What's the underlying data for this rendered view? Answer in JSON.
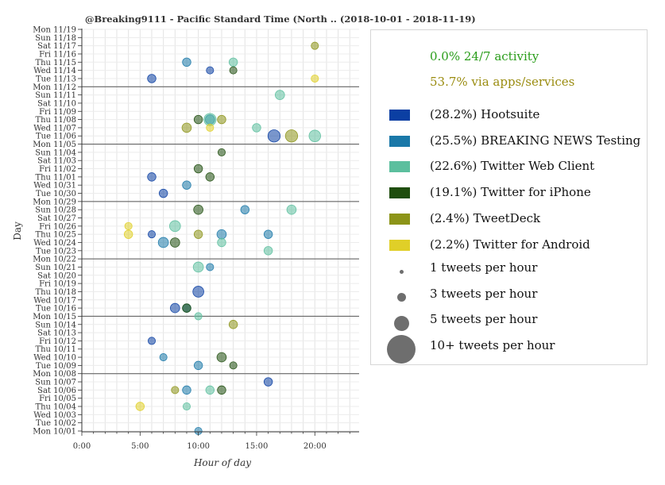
{
  "chart_data": {
    "type": "scatter",
    "title": "@Breaking9111 - Pacific Standard Time (North .. (2018-10-01 - 2018-11-19)",
    "xlabel": "Hour of day",
    "ylabel": "Day",
    "xlim": [
      0,
      23.8
    ],
    "xticks": [
      "0:00",
      "5:00",
      "10:00",
      "15:00",
      "20:00"
    ],
    "xtick_values": [
      0,
      5,
      10,
      15,
      20
    ],
    "days": [
      "Mon 11/19",
      "Sun 11/18",
      "Sat 11/17",
      "Fri 11/16",
      "Thu 11/15",
      "Wed 11/14",
      "Tue 11/13",
      "Mon 11/12",
      "Sun 11/11",
      "Sat 11/10",
      "Fri 11/09",
      "Thu 11/08",
      "Wed 11/07",
      "Tue 11/06",
      "Mon 11/05",
      "Sun 11/04",
      "Sat 11/03",
      "Fri 11/02",
      "Thu 11/01",
      "Wed 10/31",
      "Tue 10/30",
      "Mon 10/29",
      "Sun 10/28",
      "Sat 10/27",
      "Fri 10/26",
      "Thu 10/25",
      "Wed 10/24",
      "Tue 10/23",
      "Mon 10/22",
      "Sun 10/21",
      "Sat 10/20",
      "Fri 10/19",
      "Thu 10/18",
      "Wed 10/17",
      "Tue 10/16",
      "Mon 10/15",
      "Sun 10/14",
      "Sat 10/13",
      "Fri 10/12",
      "Thu 10/11",
      "Wed 10/10",
      "Tue 10/09",
      "Mon 10/08",
      "Sun 10/07",
      "Sat 10/06",
      "Fri 10/05",
      "Thu 10/04",
      "Wed 10/03",
      "Tue 10/02",
      "Mon 10/01"
    ],
    "week_separators": [
      "Mon 11/12",
      "Mon 11/05",
      "Mon 10/29",
      "Mon 10/22",
      "Mon 10/15",
      "Mon 10/08"
    ],
    "grid": true,
    "legend_position": "right",
    "series": [
      {
        "name": "Hootsuite",
        "share": "28.2%",
        "color": "#0b3fa3",
        "points": [
          [
            "Tue 11/06",
            16.5,
            8
          ],
          [
            "Tue 11/13",
            6,
            3
          ],
          [
            "Thu 10/18",
            10,
            6
          ],
          [
            "Tue 10/16",
            8,
            4
          ],
          [
            "Thu 11/01",
            6,
            3
          ],
          [
            "Tue 10/30",
            7,
            3
          ],
          [
            "Fri 10/12",
            6,
            2
          ],
          [
            "Wed 11/14",
            11,
            2
          ],
          [
            "Sun 10/07",
            16,
            3
          ],
          [
            "Thu 10/25",
            6,
            2
          ]
        ]
      },
      {
        "name": "BREAKING NEWS Testing",
        "share": "25.5%",
        "color": "#1a78a8",
        "points": [
          [
            "Wed 10/24",
            7,
            5
          ],
          [
            "Thu 10/25",
            12,
            4
          ],
          [
            "Thu 11/15",
            9,
            3
          ],
          [
            "Sun 10/28",
            14,
            3
          ],
          [
            "Tue 10/09",
            10,
            3
          ],
          [
            "Wed 10/31",
            9,
            3
          ],
          [
            "Sat 10/06",
            9,
            3
          ],
          [
            "Thu 11/08",
            11,
            4
          ],
          [
            "Tue 10/16",
            9,
            3
          ],
          [
            "Thu 10/25",
            16,
            3
          ],
          [
            "Wed 10/10",
            7,
            2
          ],
          [
            "Sun 10/21",
            11,
            2
          ],
          [
            "Mon 10/01",
            10,
            2
          ]
        ]
      },
      {
        "name": "Twitter Web Client",
        "share": "22.6%",
        "color": "#5cbf9e",
        "points": [
          [
            "Thu 11/08",
            11,
            8
          ],
          [
            "Fri 10/26",
            8,
            6
          ],
          [
            "Sun 10/21",
            10,
            5
          ],
          [
            "Tue 11/06",
            20,
            7
          ],
          [
            "Sun 11/11",
            17,
            4
          ],
          [
            "Wed 11/07",
            15,
            3
          ],
          [
            "Sun 10/28",
            18,
            4
          ],
          [
            "Thu 11/15",
            13,
            3
          ],
          [
            "Tue 10/23",
            16,
            3
          ],
          [
            "Wed 10/24",
            12,
            3
          ],
          [
            "Sat 10/06",
            11,
            3
          ],
          [
            "Mon 10/15",
            10,
            2
          ],
          [
            "Thu 10/04",
            9,
            2
          ]
        ]
      },
      {
        "name": "Twitter for iPhone",
        "share": "19.1%",
        "color": "#1f4e0e",
        "points": [
          [
            "Sun 10/28",
            10,
            4
          ],
          [
            "Wed 10/24",
            8,
            4
          ],
          [
            "Wed 10/10",
            12,
            4
          ],
          [
            "Tue 10/16",
            9,
            3
          ],
          [
            "Thu 11/01",
            11,
            3
          ],
          [
            "Sat 10/06",
            12,
            3
          ],
          [
            "Thu 11/08",
            10,
            3
          ],
          [
            "Wed 11/14",
            13,
            2
          ],
          [
            "Fri 11/02",
            10,
            3
          ],
          [
            "Sun 11/04",
            12,
            2
          ],
          [
            "Tue 10/09",
            13,
            2
          ]
        ]
      },
      {
        "name": "TweetDeck",
        "share": "2.4%",
        "color": "#8c9418",
        "points": [
          [
            "Tue 11/06",
            18,
            8
          ],
          [
            "Wed 11/07",
            9,
            4
          ],
          [
            "Thu 11/08",
            12,
            3
          ],
          [
            "Thu 10/25",
            10,
            3
          ],
          [
            "Sun 10/14",
            13,
            3
          ],
          [
            "Sat 10/06",
            8,
            2
          ],
          [
            "Sat 11/17",
            20,
            2
          ]
        ]
      },
      {
        "name": "Twitter for Android",
        "share": "2.2%",
        "color": "#e0cf28",
        "points": [
          [
            "Thu 10/25",
            4,
            3
          ],
          [
            "Thu 10/04",
            5,
            3
          ],
          [
            "Wed 11/07",
            11,
            2
          ],
          [
            "Tue 11/13",
            20,
            2
          ],
          [
            "Fri 10/26",
            4,
            2
          ]
        ]
      }
    ]
  },
  "legend": {
    "summary_247": "0.0% 24/7 activity",
    "summary_247_color": "#2a9d1a",
    "summary_apps": "53.7% via apps/services",
    "summary_apps_color": "#9a8c10",
    "entries": [
      {
        "label": "(28.2%) Hootsuite",
        "color": "#0b3fa3"
      },
      {
        "label": "(25.5%) BREAKING NEWS Testing",
        "color": "#1a78a8"
      },
      {
        "label": "(22.6%) Twitter Web Client",
        "color": "#5cbf9e"
      },
      {
        "label": "(19.1%) Twitter for iPhone",
        "color": "#1f4e0e"
      },
      {
        "label": "(2.4%) TweetDeck",
        "color": "#8c9418"
      },
      {
        "label": "(2.2%) Twitter for Android",
        "color": "#e0cf28"
      }
    ],
    "sizes": [
      {
        "label": "1 tweets per hour",
        "value": 1
      },
      {
        "label": "3 tweets per hour",
        "value": 3
      },
      {
        "label": "5 tweets per hour",
        "value": 5
      },
      {
        "label": "10+ tweets per hour",
        "value": 10
      }
    ]
  }
}
